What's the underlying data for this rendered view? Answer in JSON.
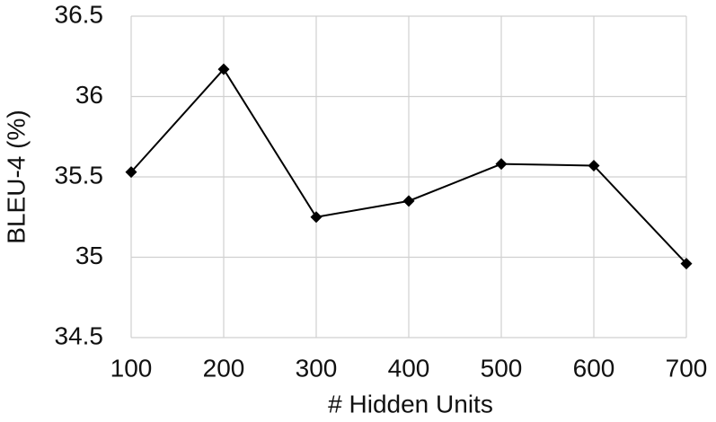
{
  "chart_data": {
    "type": "line",
    "x_label": "# Hidden Units",
    "y_label": "BLEU-4 (%)",
    "x": [
      100,
      200,
      300,
      400,
      500,
      600,
      700
    ],
    "values": [
      35.53,
      36.17,
      35.25,
      35.35,
      35.58,
      35.57,
      34.96
    ],
    "color": "#000000",
    "xlim": [
      100,
      700
    ],
    "xticks": [
      100,
      200,
      300,
      400,
      500,
      600,
      700
    ],
    "ylim": [
      34.5,
      36.5
    ],
    "yticks": [
      34.5,
      35,
      35.5,
      36,
      36.5
    ],
    "grid": true
  }
}
